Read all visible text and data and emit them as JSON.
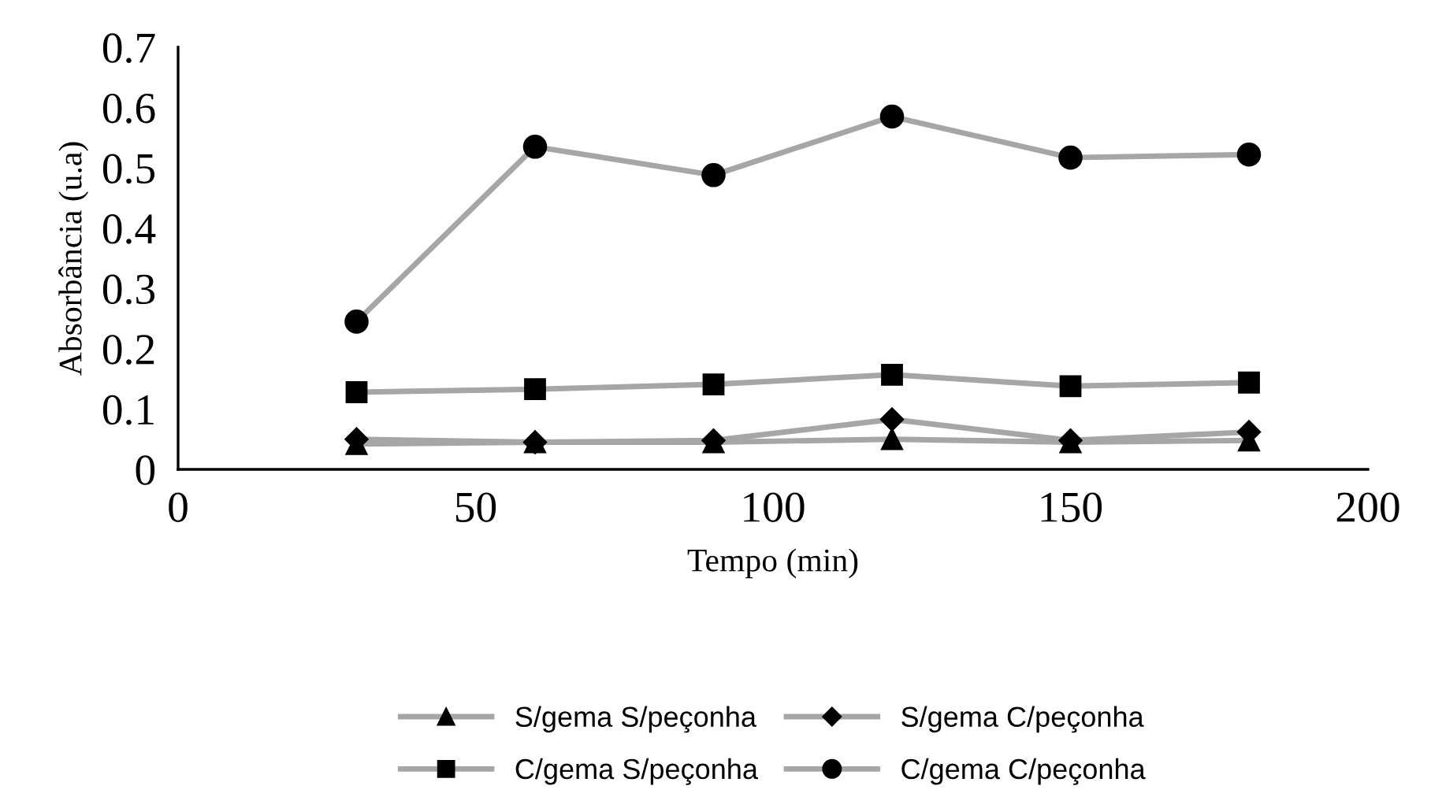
{
  "chart_data": {
    "type": "line",
    "xlabel": "Tempo (min)",
    "ylabel": "Absorbância (u.a)",
    "x": [
      30,
      60,
      90,
      120,
      150,
      180
    ],
    "series": [
      {
        "name": "S/gema S/peçonha",
        "color": "#a6a6a6",
        "marker": "triangle",
        "values": [
          0.042,
          0.045,
          0.045,
          0.05,
          0.045,
          0.048
        ]
      },
      {
        "name": "S/gema C/peçonha",
        "color": "#a6a6a6",
        "marker": "diamond",
        "values": [
          0.05,
          0.045,
          0.048,
          0.083,
          0.048,
          0.062
        ]
      },
      {
        "name": "C/gema S/peçonha",
        "color": "#a6a6a6",
        "marker": "square",
        "values": [
          0.128,
          0.133,
          0.141,
          0.157,
          0.138,
          0.144
        ]
      },
      {
        "name": "C/gema C/peçonha",
        "color": "#a6a6a6",
        "marker": "circle",
        "values": [
          0.245,
          0.535,
          0.488,
          0.585,
          0.517,
          0.522
        ]
      }
    ],
    "xlim": [
      0,
      200
    ],
    "xticks": [
      0,
      50,
      100,
      150,
      200
    ],
    "ylim": [
      0,
      0.7
    ],
    "yticks": [
      0,
      0.1,
      0.2,
      0.3,
      0.4,
      0.5,
      0.6,
      0.7
    ],
    "grid": false,
    "legend": "bottom",
    "line_style": "solid"
  }
}
